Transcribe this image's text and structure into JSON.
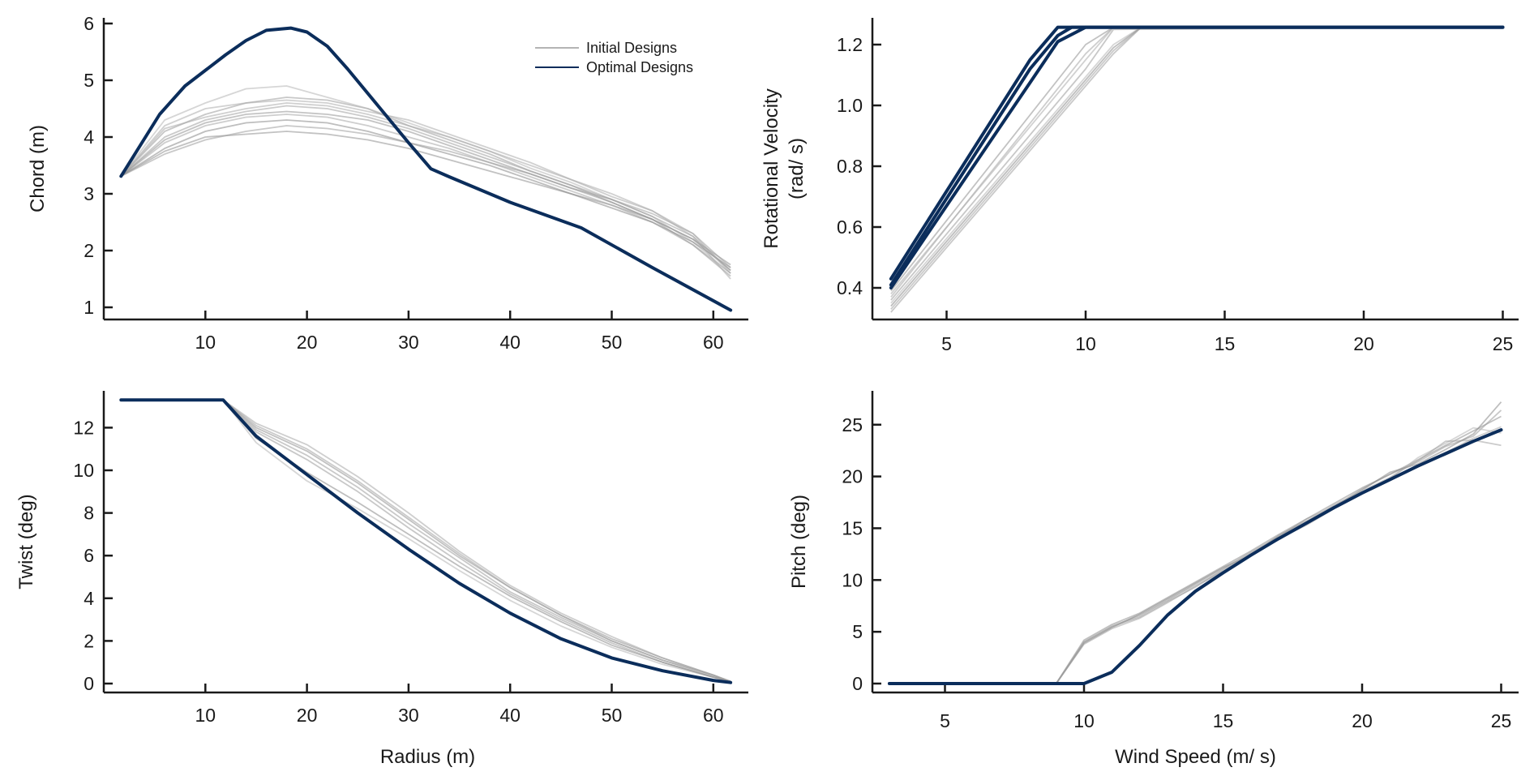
{
  "colors": {
    "initial": "#8c8c8c",
    "optimal": "#0b2d5b",
    "axis": "#1a1a1a"
  },
  "legend": {
    "placement": "top-right of chord panel",
    "items": [
      {
        "label": "Initial Designs",
        "color": "#b4b4b4"
      },
      {
        "label": "Optimal Designs",
        "color": "#0b2d5b"
      }
    ]
  },
  "chart_data": [
    {
      "id": "chord",
      "type": "line",
      "title": "",
      "xlabel": "",
      "ylabel": "Chord (m)",
      "xlim": [
        0,
        63.5
      ],
      "ylim": [
        0.8,
        6.15
      ],
      "xticks": [
        10,
        20,
        30,
        40,
        50,
        60
      ],
      "yticks": [
        1,
        2,
        3,
        4,
        5,
        6
      ],
      "grid": false,
      "x": [
        1.7,
        5.5,
        8,
        12,
        14,
        16,
        18.4,
        20,
        22,
        24,
        27,
        30,
        32.2,
        34,
        40,
        47,
        54,
        61.7
      ],
      "series": [
        {
          "name": "Optimal Designs",
          "values": [
            3.31,
            4.4,
            4.9,
            5.45,
            5.7,
            5.88,
            5.92,
            5.85,
            5.6,
            5.2,
            4.55,
            3.9,
            3.44,
            3.3,
            2.85,
            2.4,
            1.7,
            0.95
          ]
        }
      ],
      "initial_designs": {
        "name": "Initial Designs",
        "x": [
          1.7,
          6,
          10,
          14,
          18,
          22,
          26,
          30,
          34,
          38,
          42,
          46,
          50,
          54,
          58,
          61.7
        ],
        "curves": [
          [
            3.31,
            3.75,
            4.0,
            4.05,
            4.1,
            4.05,
            3.95,
            3.8,
            3.6,
            3.4,
            3.2,
            3.0,
            2.8,
            2.55,
            2.2,
            1.75
          ],
          [
            3.31,
            3.9,
            4.2,
            4.35,
            4.4,
            4.35,
            4.2,
            4.0,
            3.8,
            3.55,
            3.3,
            3.05,
            2.8,
            2.5,
            2.1,
            1.6
          ],
          [
            3.31,
            4.1,
            4.4,
            4.6,
            4.7,
            4.65,
            4.5,
            4.2,
            3.95,
            3.7,
            3.4,
            3.15,
            2.85,
            2.55,
            2.1,
            1.55
          ],
          [
            3.31,
            4.3,
            4.6,
            4.85,
            4.9,
            4.7,
            4.5,
            4.25,
            4.0,
            3.75,
            3.45,
            3.2,
            2.9,
            2.6,
            2.15,
            1.6
          ],
          [
            3.31,
            3.8,
            4.1,
            4.25,
            4.3,
            4.25,
            4.1,
            3.9,
            3.7,
            3.5,
            3.25,
            3.0,
            2.75,
            2.5,
            2.15,
            1.7
          ],
          [
            3.31,
            4.0,
            4.3,
            4.45,
            4.55,
            4.5,
            4.35,
            4.15,
            3.9,
            3.65,
            3.4,
            3.15,
            2.9,
            2.65,
            2.3,
            1.7
          ],
          [
            3.31,
            3.7,
            3.95,
            4.1,
            4.2,
            4.15,
            4.05,
            3.9,
            3.75,
            3.55,
            3.35,
            3.1,
            2.9,
            2.6,
            2.25,
            1.65
          ],
          [
            3.31,
            4.2,
            4.5,
            4.6,
            4.65,
            4.6,
            4.45,
            4.3,
            4.05,
            3.8,
            3.55,
            3.25,
            3.0,
            2.7,
            2.25,
            1.5
          ],
          [
            3.31,
            3.95,
            4.25,
            4.4,
            4.45,
            4.4,
            4.3,
            4.1,
            3.85,
            3.6,
            3.35,
            3.1,
            2.85,
            2.55,
            2.2,
            1.65
          ],
          [
            3.31,
            4.15,
            4.35,
            4.5,
            4.6,
            4.55,
            4.4,
            4.2,
            4.0,
            3.75,
            3.5,
            3.25,
            2.95,
            2.7,
            2.3,
            1.6
          ]
        ]
      }
    },
    {
      "id": "rotational-velocity",
      "type": "line",
      "title": "",
      "xlabel": "",
      "ylabel": "Rotational Velocity\n(rad/ s)",
      "xlim": [
        2.35,
        25.5
      ],
      "ylim": [
        0.3,
        1.29
      ],
      "xticks": [
        5,
        10,
        15,
        20,
        25
      ],
      "yticks": [
        0.4,
        0.6,
        0.8,
        1.0,
        1.2
      ],
      "ytick_labels": [
        "0.4",
        "0.6",
        "0.8",
        "1.0",
        "1.2"
      ],
      "grid": false,
      "series": [
        {
          "name": "Optimal Designs",
          "x": [
            3,
            8,
            9,
            25
          ],
          "values": [
            0.43,
            1.15,
            1.257,
            1.257
          ]
        },
        {
          "name": "Optimal Designs",
          "x": [
            3,
            8,
            9,
            9.5,
            25
          ],
          "values": [
            0.41,
            1.12,
            1.23,
            1.257,
            1.257
          ]
        },
        {
          "name": "Optimal Designs",
          "x": [
            3,
            9,
            10,
            25
          ],
          "values": [
            0.4,
            1.21,
            1.257,
            1.257
          ]
        }
      ],
      "initial_designs": {
        "name": "Initial Designs",
        "curves": [
          {
            "x": [
              3,
              10,
              11,
              25
            ],
            "values": [
              0.39,
              1.2,
              1.257,
              1.257
            ]
          },
          {
            "x": [
              3,
              10,
              11,
              25
            ],
            "values": [
              0.37,
              1.17,
              1.257,
              1.257
            ]
          },
          {
            "x": [
              3,
              10,
              11,
              25
            ],
            "values": [
              0.36,
              1.12,
              1.25,
              1.257
            ]
          },
          {
            "x": [
              3,
              11,
              12,
              25
            ],
            "values": [
              0.35,
              1.2,
              1.257,
              1.257
            ]
          },
          {
            "x": [
              3,
              11,
              12,
              25
            ],
            "values": [
              0.34,
              1.19,
              1.257,
              1.257
            ]
          },
          {
            "x": [
              3,
              11,
              12,
              25
            ],
            "values": [
              0.33,
              1.18,
              1.257,
              1.257
            ]
          },
          {
            "x": [
              3,
              11,
              12,
              25
            ],
            "values": [
              0.32,
              1.17,
              1.257,
              1.257
            ]
          },
          {
            "x": [
              3,
              10,
              11,
              25
            ],
            "values": [
              0.38,
              1.15,
              1.257,
              1.257
            ]
          }
        ]
      }
    },
    {
      "id": "twist",
      "type": "line",
      "title": "",
      "xlabel": "Radius (m)",
      "ylabel": "Twist (deg)",
      "xlim": [
        0,
        63.5
      ],
      "ylim": [
        -0.4,
        13.9
      ],
      "xticks": [
        10,
        20,
        30,
        40,
        50,
        60
      ],
      "yticks": [
        0,
        2,
        4,
        6,
        8,
        10,
        12
      ],
      "grid": false,
      "x": [
        1.7,
        11.75,
        15,
        20,
        25,
        30,
        35,
        40,
        45,
        50,
        55,
        60,
        61.7
      ],
      "series": [
        {
          "name": "Optimal Designs",
          "values": [
            13.3,
            13.3,
            11.6,
            9.8,
            8.0,
            6.3,
            4.7,
            3.3,
            2.1,
            1.2,
            0.6,
            0.15,
            0.05
          ]
        }
      ],
      "initial_designs": {
        "name": "Initial Designs",
        "curves": [
          [
            13.3,
            13.3,
            12.0,
            10.9,
            9.4,
            7.7,
            6.0,
            4.5,
            3.2,
            2.1,
            1.2,
            0.4,
            0.1
          ],
          [
            13.3,
            13.3,
            12.2,
            11.2,
            9.7,
            8.0,
            6.2,
            4.6,
            3.3,
            2.2,
            1.2,
            0.4,
            0.1
          ],
          [
            13.3,
            13.3,
            11.8,
            10.5,
            9.0,
            7.3,
            5.7,
            4.2,
            3.0,
            1.9,
            1.0,
            0.3,
            0.1
          ],
          [
            13.3,
            13.3,
            11.3,
            9.5,
            8.2,
            6.8,
            5.3,
            3.9,
            2.7,
            1.7,
            0.9,
            0.3,
            0.1
          ],
          [
            13.3,
            13.3,
            11.5,
            9.9,
            8.5,
            7.0,
            5.5,
            4.1,
            2.9,
            1.8,
            1.0,
            0.3,
            0.1
          ],
          [
            13.3,
            13.3,
            12.1,
            11.0,
            9.5,
            7.8,
            6.1,
            4.5,
            3.2,
            2.0,
            1.1,
            0.4,
            0.1
          ],
          [
            13.3,
            13.3,
            11.9,
            10.7,
            9.2,
            7.5,
            5.9,
            4.3,
            3.1,
            2.0,
            1.1,
            0.35,
            0.1
          ]
        ]
      }
    },
    {
      "id": "pitch",
      "type": "line",
      "title": "",
      "xlabel": "Wind Speed (m/ s)",
      "ylabel": "Pitch (deg)",
      "xlim": [
        2.35,
        25.5
      ],
      "ylim": [
        -0.9,
        28.2
      ],
      "xticks": [
        5,
        10,
        15,
        20,
        25
      ],
      "yticks": [
        0,
        5,
        10,
        15,
        20,
        25
      ],
      "grid": false,
      "x": [
        3,
        4,
        5,
        6,
        7,
        8,
        9,
        10,
        11,
        12,
        13,
        14,
        15,
        16,
        17,
        18,
        19,
        20,
        21,
        22,
        23,
        24,
        25
      ],
      "series": [
        {
          "name": "Optimal Designs",
          "values": [
            0,
            0,
            0,
            0,
            0,
            0,
            0,
            0,
            1.1,
            3.7,
            6.6,
            8.9,
            10.7,
            12.4,
            14.0,
            15.5,
            17.0,
            18.4,
            19.7,
            21.0,
            22.2,
            23.4,
            24.5
          ]
        }
      ],
      "initial_designs": {
        "name": "Initial Designs",
        "curves": [
          [
            0,
            0,
            0,
            0,
            0,
            0,
            0,
            4.2,
            5.7,
            6.8,
            8.3,
            9.8,
            11.3,
            12.8,
            14.4,
            15.9,
            17.4,
            18.9,
            20.2,
            21.6,
            23.0,
            24.4,
            25.8
          ],
          [
            0,
            0,
            0,
            0,
            0,
            0,
            0,
            3.8,
            5.3,
            6.3,
            7.8,
            9.4,
            10.8,
            12.3,
            14.0,
            15.3,
            16.9,
            18.3,
            19.6,
            21.0,
            22.3,
            23.7,
            24.8
          ],
          [
            0,
            0,
            0,
            0,
            0,
            0,
            0,
            4.0,
            5.5,
            6.6,
            8.0,
            9.6,
            11.1,
            12.7,
            14.2,
            15.9,
            17.1,
            18.8,
            20.2,
            21.4,
            22.9,
            23.9,
            26.4
          ],
          [
            0,
            0,
            0,
            0,
            0,
            0,
            0,
            4.1,
            5.6,
            6.5,
            8.1,
            9.5,
            10.9,
            12.5,
            13.9,
            15.6,
            17.3,
            18.5,
            19.8,
            21.8,
            23.2,
            24.7,
            24.2
          ],
          [
            0,
            0,
            0,
            0,
            0,
            0,
            0,
            3.9,
            5.4,
            6.7,
            8.2,
            9.7,
            11.2,
            12.4,
            14.3,
            15.7,
            17.0,
            18.7,
            20.4,
            21.2,
            22.6,
            24.1,
            27.2
          ],
          [
            0,
            0,
            0,
            0,
            0,
            0,
            0,
            4.0,
            5.5,
            6.4,
            7.9,
            9.3,
            11.0,
            12.6,
            14.1,
            15.4,
            17.2,
            18.6,
            19.9,
            21.5,
            23.4,
            23.5,
            23.0
          ]
        ]
      }
    }
  ]
}
